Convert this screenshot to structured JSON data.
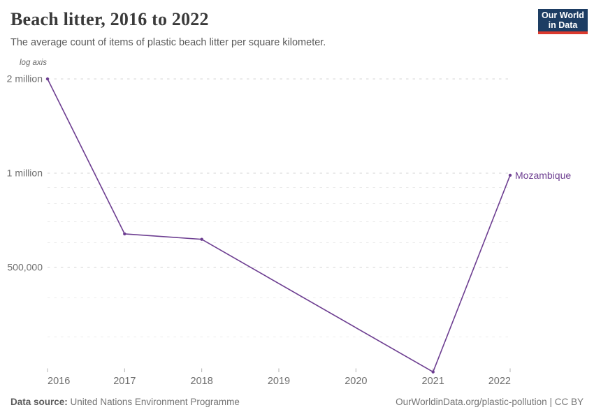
{
  "header": {
    "title": "Beach litter, 2016 to 2022",
    "subtitle": "The average count of items of plastic beach litter per square kilometer.",
    "logo": {
      "line1": "Our World",
      "line2": "in Data"
    }
  },
  "chart_data": {
    "type": "line",
    "title": "Beach litter, 2016 to 2022",
    "ylabel": "Average count of items of plastic beach litter per square kilometer",
    "axis_note": "log axis",
    "y_scale": "log",
    "grid": true,
    "x_ticks": [
      "2016",
      "2017",
      "2018",
      "2019",
      "2020",
      "2021",
      "2022"
    ],
    "y_axis": {
      "major_ticks": [
        {
          "value": 2000000,
          "label": "2 million"
        },
        {
          "value": 1000000,
          "label": "1 million"
        },
        {
          "value": 500000,
          "label": "500,000"
        }
      ],
      "minor_ticks": [
        900000,
        800000,
        700000,
        600000,
        400000,
        300000
      ],
      "ylim": [
        232000,
        2000000
      ]
    },
    "series": [
      {
        "name": "Mozambique",
        "color": "#6d3e91",
        "points": [
          {
            "year": 2016,
            "value": 2000000
          },
          {
            "year": 2017,
            "value": 640000
          },
          {
            "year": 2018,
            "value": 615000
          },
          {
            "year": 2021,
            "value": 232000
          },
          {
            "year": 2022,
            "value": 985000
          }
        ]
      }
    ]
  },
  "entity_label": "Mozambique",
  "footer": {
    "source_label": "Data source:",
    "source": "United Nations Environment Programme",
    "url": "OurWorldinData.org/plastic-pollution",
    "separator": "|",
    "license": "CC BY"
  },
  "colors": {
    "line": "#6d3e91",
    "grid_major": "#d6d6d6",
    "grid_minor": "#ebebeb",
    "axis_tick": "#b3b3b3",
    "logo_bg": "#1d3d63",
    "logo_accent": "#dc3a2e"
  }
}
